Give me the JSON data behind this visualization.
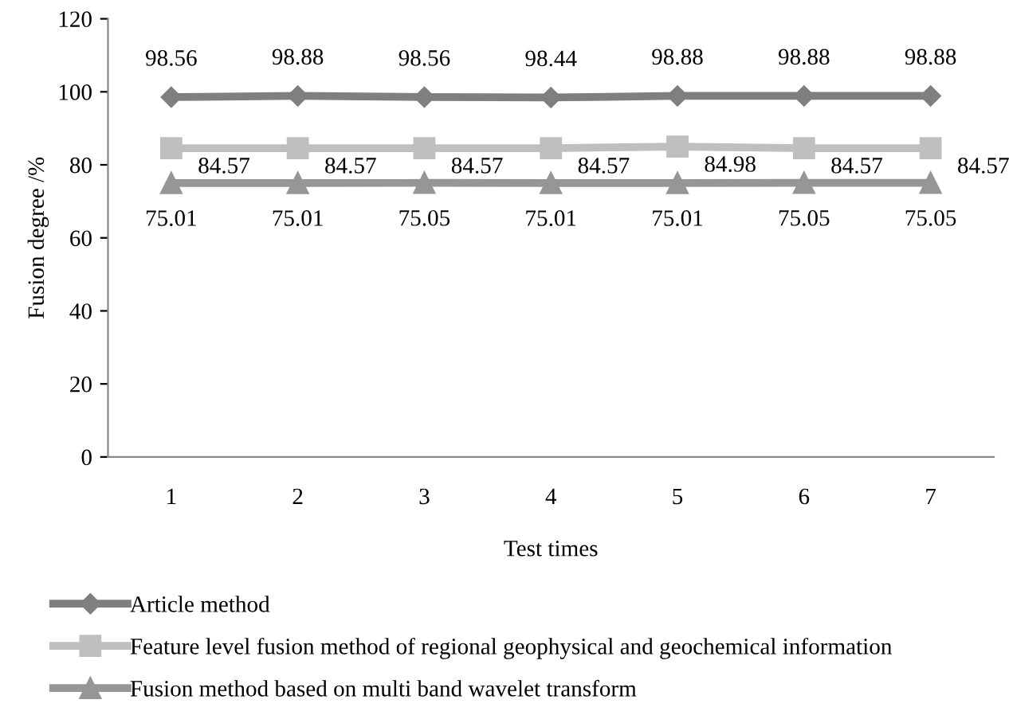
{
  "chart_data": {
    "type": "line",
    "xlabel": "Test times",
    "ylabel": "Fusion degree /%",
    "categories": [
      "1",
      "2",
      "3",
      "4",
      "5",
      "6",
      "7"
    ],
    "series": [
      {
        "name": "Article method",
        "color": "#7f7f7f",
        "marker": "diamond",
        "values": [
          98.56,
          98.88,
          98.56,
          98.44,
          98.88,
          98.88,
          98.88
        ]
      },
      {
        "name": "Feature level fusion method of regional geophysical and geochemical information",
        "color": "#bfbfbf",
        "marker": "square",
        "values": [
          84.57,
          84.57,
          84.57,
          84.57,
          84.98,
          84.57,
          84.57
        ]
      },
      {
        "name": "Fusion method based on multi band wavelet transform",
        "color": "#969696",
        "marker": "triangle",
        "values": [
          75.01,
          75.01,
          75.05,
          75.01,
          75.01,
          75.05,
          75.05
        ]
      }
    ],
    "ylim": [
      0,
      120
    ],
    "yticks": [
      0,
      20,
      40,
      60,
      80,
      100,
      120
    ],
    "data_labels": true,
    "legend": "bottom",
    "grid": false,
    "line_style": "solid"
  }
}
